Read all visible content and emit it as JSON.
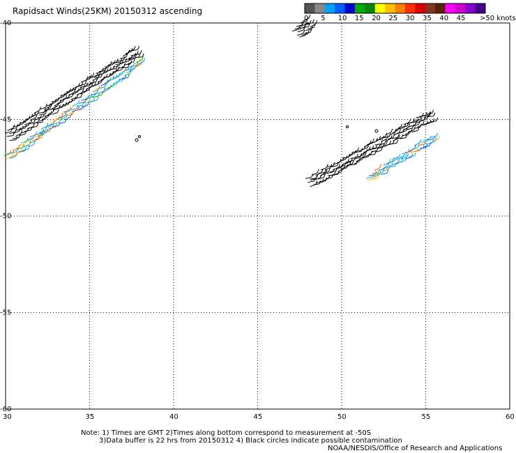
{
  "title": "Rapidsact Winds(25KM) 20150312 ascending",
  "colorbar": {
    "colors": [
      "#555555",
      "#888888",
      "#00a0ff",
      "#0060ff",
      "#0000d0",
      "#00aa00",
      "#008800",
      "#ffff00",
      "#ffc000",
      "#ff8000",
      "#ff3000",
      "#dd0000",
      "#883322",
      "#552200",
      "#ff00ff",
      "#cc00cc",
      "#8800cc",
      "#440088"
    ],
    "labels": [
      "0",
      "5",
      "10",
      "15",
      "20",
      "25",
      "30",
      "35",
      "40",
      "45",
      ">50 knots"
    ]
  },
  "axes": {
    "x_ticks": [
      "30",
      "35",
      "40",
      "45",
      "50",
      "55",
      "60"
    ],
    "y_ticks": [
      "-40",
      "-45",
      "-50",
      "-55",
      "-60"
    ],
    "xlim": [
      30,
      60
    ],
    "ylim": [
      -60,
      -40
    ]
  },
  "notes": {
    "line1": "Note: 1) Times are GMT 2)Times along bottom correspond to measurement at -50S",
    "line2": "3)Data buffer is 22 hrs from 20150312 4) Black circles indicate possible contamination",
    "line3": "NOAA/NESDIS/Office of Research and Applications"
  },
  "swaths": [
    {
      "name": "west-black",
      "color": "#000000",
      "start": [
        30.1,
        -45.9
      ],
      "end": [
        37.8,
        -41.5
      ]
    },
    {
      "name": "west-colored",
      "color": "#22aa22",
      "start": [
        30.0,
        -47.0
      ],
      "end": [
        38.0,
        -42.0
      ]
    },
    {
      "name": "north-black",
      "color": "#000000",
      "start": [
        47.3,
        -40.6
      ],
      "end": [
        48.0,
        -39.9
      ]
    },
    {
      "name": "east-black",
      "color": "#000000",
      "start": [
        48.0,
        -48.3
      ],
      "end": [
        55.3,
        -44.8
      ]
    },
    {
      "name": "east-colored",
      "color": "#00c0d0",
      "start": [
        51.5,
        -48.1
      ],
      "end": [
        55.5,
        -45.9
      ]
    }
  ]
}
